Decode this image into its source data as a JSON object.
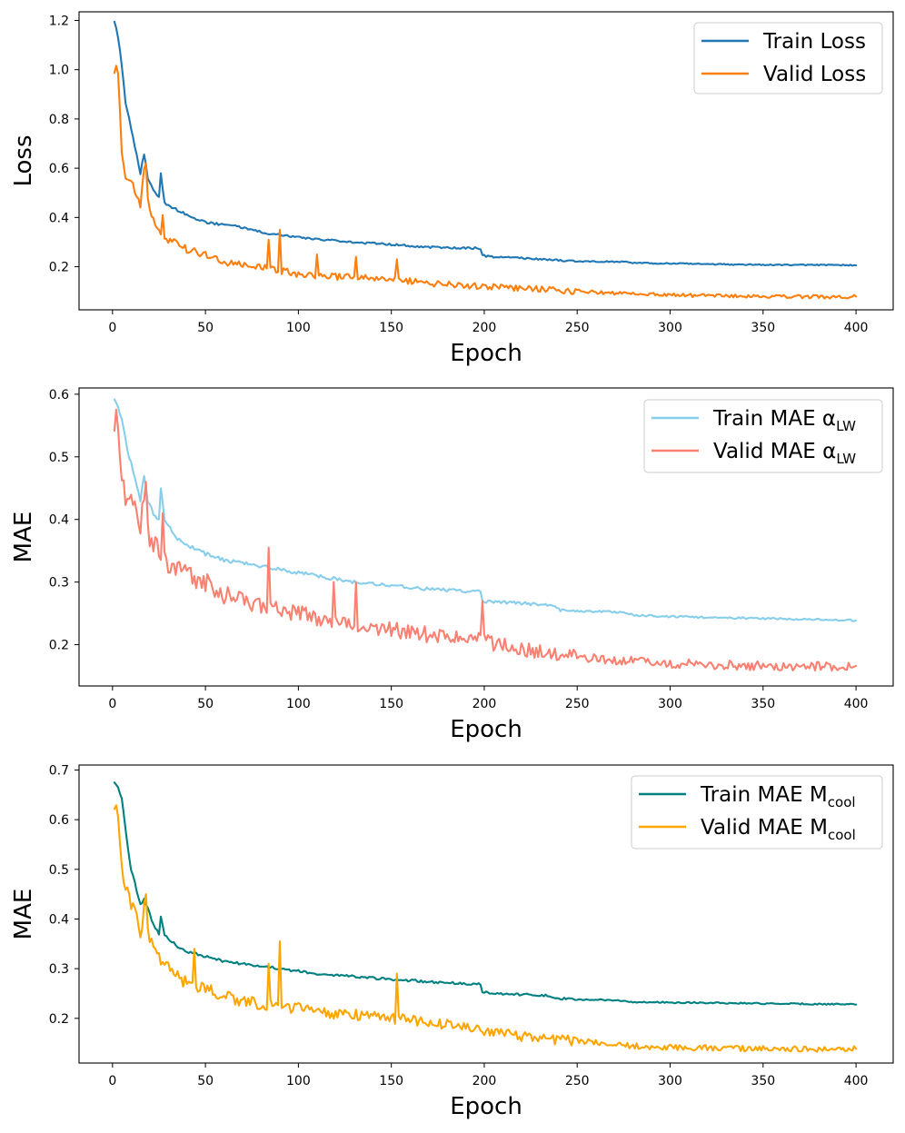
{
  "chart_data": [
    {
      "type": "line",
      "xlabel": "Epoch",
      "ylabel": "Loss",
      "xlim": [
        -18,
        420
      ],
      "ylim": [
        0.025,
        1.235
      ],
      "xticks": [
        0,
        50,
        100,
        150,
        200,
        250,
        300,
        350,
        400
      ],
      "yticks": [
        0.2,
        0.4,
        0.6,
        0.8,
        1.0,
        1.2
      ],
      "yticklabels": [
        "0.2",
        "0.4",
        "0.6",
        "0.8",
        "1.0",
        "1.2"
      ],
      "legend_position": "top-right",
      "series": [
        {
          "name": "Train Loss",
          "legend_main": "Train Loss",
          "legend_sub": "",
          "color": "#1f77b4",
          "x": [
            1,
            3,
            5,
            7,
            10,
            15,
            17,
            19,
            22,
            25,
            26,
            28,
            30,
            35,
            40,
            50,
            60,
            70,
            80,
            90,
            100,
            110,
            120,
            130,
            140,
            150,
            160,
            170,
            180,
            190,
            198,
            199,
            205,
            220,
            235,
            240,
            250,
            275,
            280,
            300,
            325,
            350,
            375,
            400
          ],
          "values": [
            1.2,
            1.13,
            1.02,
            0.87,
            0.76,
            0.58,
            0.66,
            0.56,
            0.51,
            0.48,
            0.58,
            0.46,
            0.45,
            0.43,
            0.41,
            0.38,
            0.37,
            0.36,
            0.34,
            0.33,
            0.32,
            0.31,
            0.305,
            0.3,
            0.295,
            0.29,
            0.285,
            0.28,
            0.278,
            0.276,
            0.275,
            0.245,
            0.24,
            0.235,
            0.23,
            0.225,
            0.222,
            0.22,
            0.215,
            0.213,
            0.21,
            0.208,
            0.207,
            0.206
          ],
          "noise": 0.006,
          "spikes": []
        },
        {
          "name": "Valid Loss",
          "legend_main": "Valid Loss",
          "legend_sub": "",
          "color": "#ff7f0e",
          "x": [
            1,
            2,
            3,
            5,
            7,
            10,
            13,
            15,
            17,
            20,
            25,
            30,
            40,
            50,
            60,
            70,
            80,
            100,
            120,
            150,
            175,
            200,
            225,
            250,
            275,
            300,
            325,
            350,
            375,
            400
          ],
          "values": [
            1.0,
            1.03,
            0.98,
            0.65,
            0.56,
            0.55,
            0.48,
            0.45,
            0.58,
            0.42,
            0.35,
            0.31,
            0.27,
            0.25,
            0.22,
            0.21,
            0.2,
            0.17,
            0.16,
            0.15,
            0.13,
            0.12,
            0.11,
            0.1,
            0.09,
            0.085,
            0.082,
            0.08,
            0.078,
            0.078
          ],
          "noise": 0.02,
          "spikes": [
            [
              18,
              0.62
            ],
            [
              27,
              0.41
            ],
            [
              84,
              0.31
            ],
            [
              90,
              0.35
            ],
            [
              110,
              0.25
            ],
            [
              131,
              0.24
            ],
            [
              153,
              0.23
            ]
          ]
        }
      ]
    },
    {
      "type": "line",
      "xlabel": "Epoch",
      "ylabel": "MAE",
      "xlim": [
        -18,
        420
      ],
      "ylim": [
        0.134,
        0.61
      ],
      "xticks": [
        0,
        50,
        100,
        150,
        200,
        250,
        300,
        350,
        400
      ],
      "yticks": [
        0.2,
        0.3,
        0.4,
        0.5,
        0.6
      ],
      "yticklabels": [
        "0.2",
        "0.3",
        "0.4",
        "0.5",
        "0.6"
      ],
      "legend_position": "top-right",
      "series": [
        {
          "name": "Train MAE αLW",
          "legend_main": "Train MAE α",
          "legend_sub": "LW",
          "color": "#87ceeb",
          "x": [
            1,
            3,
            5,
            8,
            10,
            15,
            17,
            19,
            22,
            25,
            26,
            28,
            30,
            35,
            40,
            50,
            60,
            70,
            80,
            90,
            100,
            110,
            120,
            130,
            140,
            150,
            160,
            170,
            180,
            190,
            198,
            199,
            205,
            220,
            235,
            240,
            250,
            275,
            280,
            300,
            325,
            350,
            375,
            400
          ],
          "values": [
            0.59,
            0.58,
            0.56,
            0.51,
            0.49,
            0.43,
            0.47,
            0.43,
            0.41,
            0.4,
            0.45,
            0.4,
            0.39,
            0.37,
            0.36,
            0.345,
            0.335,
            0.33,
            0.325,
            0.32,
            0.315,
            0.31,
            0.305,
            0.3,
            0.297,
            0.294,
            0.291,
            0.289,
            0.287,
            0.285,
            0.284,
            0.27,
            0.268,
            0.266,
            0.264,
            0.256,
            0.254,
            0.252,
            0.247,
            0.245,
            0.243,
            0.242,
            0.24,
            0.239
          ],
          "noise": 0.003,
          "spikes": []
        },
        {
          "name": "Valid MAE αLW",
          "legend_main": "Valid MAE α",
          "legend_sub": "LW",
          "color": "#fa8072",
          "x": [
            1,
            2,
            3,
            5,
            7,
            10,
            13,
            15,
            17,
            20,
            25,
            30,
            40,
            50,
            60,
            70,
            80,
            100,
            120,
            150,
            175,
            200,
            225,
            250,
            275,
            300,
            325,
            350,
            375,
            400
          ],
          "values": [
            0.53,
            0.56,
            0.54,
            0.47,
            0.43,
            0.43,
            0.42,
            0.38,
            0.44,
            0.37,
            0.35,
            0.33,
            0.31,
            0.3,
            0.28,
            0.27,
            0.26,
            0.25,
            0.235,
            0.225,
            0.215,
            0.205,
            0.19,
            0.18,
            0.175,
            0.17,
            0.168,
            0.166,
            0.165,
            0.165
          ],
          "noise": 0.016,
          "spikes": [
            [
              18,
              0.46
            ],
            [
              27,
              0.41
            ],
            [
              84,
              0.355
            ],
            [
              119,
              0.3
            ],
            [
              131,
              0.3
            ],
            [
              199,
              0.27
            ]
          ]
        }
      ]
    },
    {
      "type": "line",
      "xlabel": "Epoch",
      "ylabel": "MAE",
      "xlim": [
        -18,
        420
      ],
      "ylim": [
        0.11,
        0.71
      ],
      "xticks": [
        0,
        50,
        100,
        150,
        200,
        250,
        300,
        350,
        400
      ],
      "yticks": [
        0.2,
        0.3,
        0.4,
        0.5,
        0.6,
        0.7
      ],
      "yticklabels": [
        "0.2",
        "0.3",
        "0.4",
        "0.5",
        "0.6",
        "0.7"
      ],
      "legend_position": "top-right",
      "series": [
        {
          "name": "Train MAE Mcool",
          "legend_main": "Train MAE M",
          "legend_sub": "cool",
          "color": "#008080",
          "x": [
            1,
            3,
            5,
            8,
            10,
            15,
            17,
            19,
            22,
            25,
            26,
            28,
            30,
            35,
            40,
            50,
            60,
            70,
            80,
            90,
            100,
            110,
            120,
            130,
            140,
            150,
            160,
            170,
            180,
            190,
            198,
            199,
            205,
            220,
            235,
            240,
            250,
            275,
            280,
            300,
            325,
            350,
            375,
            400
          ],
          "values": [
            0.675,
            0.665,
            0.64,
            0.55,
            0.5,
            0.43,
            0.44,
            0.42,
            0.39,
            0.37,
            0.405,
            0.37,
            0.36,
            0.345,
            0.335,
            0.325,
            0.315,
            0.31,
            0.305,
            0.3,
            0.295,
            0.29,
            0.287,
            0.284,
            0.281,
            0.279,
            0.276,
            0.274,
            0.272,
            0.27,
            0.269,
            0.253,
            0.25,
            0.248,
            0.246,
            0.24,
            0.238,
            0.236,
            0.233,
            0.232,
            0.231,
            0.23,
            0.229,
            0.228
          ],
          "noise": 0.003,
          "spikes": []
        },
        {
          "name": "Valid MAE Mcool",
          "legend_main": "Valid MAE M",
          "legend_sub": "cool",
          "color": "#ffa500",
          "x": [
            1,
            2,
            3,
            5,
            7,
            10,
            13,
            15,
            17,
            20,
            25,
            30,
            40,
            50,
            60,
            70,
            80,
            100,
            120,
            150,
            175,
            200,
            225,
            250,
            275,
            300,
            325,
            350,
            375,
            400
          ],
          "values": [
            0.62,
            0.62,
            0.6,
            0.5,
            0.47,
            0.43,
            0.4,
            0.36,
            0.43,
            0.36,
            0.32,
            0.3,
            0.27,
            0.26,
            0.245,
            0.235,
            0.228,
            0.22,
            0.21,
            0.2,
            0.19,
            0.175,
            0.16,
            0.155,
            0.145,
            0.142,
            0.14,
            0.139,
            0.138,
            0.138
          ],
          "noise": 0.014,
          "spikes": [
            [
              18,
              0.45
            ],
            [
              44,
              0.34
            ],
            [
              84,
              0.31
            ],
            [
              90,
              0.355
            ],
            [
              153,
              0.29
            ]
          ]
        }
      ]
    }
  ]
}
